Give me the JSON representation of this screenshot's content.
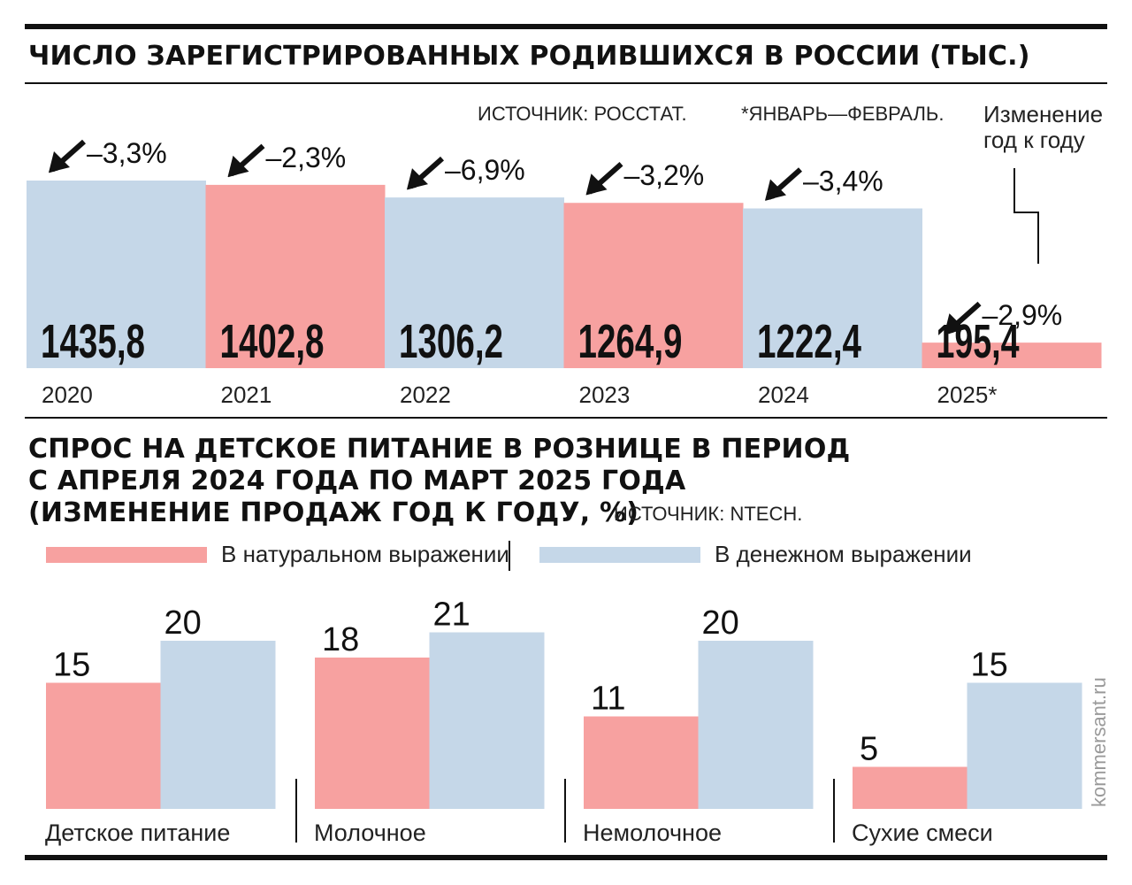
{
  "chart_data": [
    {
      "type": "bar",
      "title": "ЧИСЛО ЗАРЕГИСТРИРОВАННЫХ РОДИВШИХСЯ В РОССИИ (ТЫС.)",
      "categories": [
        "2020",
        "2021",
        "2022",
        "2023",
        "2024",
        "2025*"
      ],
      "values": [
        1435.8,
        1402.8,
        1306.2,
        1264.9,
        1222.4,
        195.4
      ],
      "value_labels": [
        "1435,8",
        "1402,8",
        "1306,2",
        "1264,9",
        "1222,4",
        "195,4"
      ],
      "changes": [
        "–3,3%",
        "–2,3%",
        "–6,9%",
        "–3,2%",
        "–3,4%",
        "–2,9%"
      ],
      "bar_colors": [
        "#c5d7e8",
        "#f7a1a0",
        "#c5d7e8",
        "#f7a1a0",
        "#c5d7e8",
        "#f7a1a0"
      ],
      "source": "ИСТОЧНИК: РОССТАТ.",
      "footnote": "*ЯНВАРЬ—ФЕВРАЛЬ.",
      "annotation_line1": "Изменение",
      "annotation_line2": "год к году",
      "ylim": [
        0,
        1435.8
      ]
    },
    {
      "type": "bar",
      "title_line1": "СПРОС НА ДЕТСКОЕ ПИТАНИЕ В РОЗНИЦЕ В ПЕРИОД",
      "title_line2": "С АПРЕЛЯ 2024 ГОДА ПО МАРТ 2025 ГОДА",
      "title_line3": "(ИЗМЕНЕНИЕ ПРОДАЖ ГОД К ГОДУ, %)",
      "source": "ИСТОЧНИК: NTECH.",
      "categories": [
        "Детское питание",
        "Молочное",
        "Немолочное",
        "Сухие смеси"
      ],
      "series": [
        {
          "name": "В натуральном выражении",
          "values": [
            15,
            18,
            11,
            5
          ],
          "color": "#f7a1a0"
        },
        {
          "name": "В денежном выражении",
          "values": [
            20,
            21,
            20,
            15
          ],
          "color": "#c5d7e8"
        }
      ],
      "ylim": [
        0,
        21
      ]
    }
  ],
  "watermark": "kommersant.ru",
  "colors": {
    "pink": "#f7a1a0",
    "blue": "#c5d7e8",
    "ink": "#111111"
  }
}
